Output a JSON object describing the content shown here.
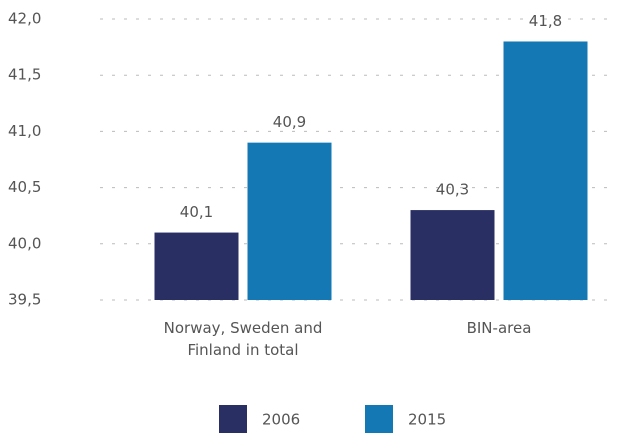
{
  "chart_data": {
    "type": "bar",
    "categories": [
      "Norway, Sweden and Finland in total",
      "BIN-area"
    ],
    "series": [
      {
        "name": "2006",
        "color": "#2a2f63",
        "values": [
          40.1,
          40.3
        ],
        "value_labels": [
          "40,1",
          "40,3"
        ]
      },
      {
        "name": "2015",
        "color": "#1478b4",
        "values": [
          40.9,
          41.8
        ],
        "value_labels": [
          "40,9",
          "41,8"
        ]
      }
    ],
    "ylim": [
      39.5,
      42.0
    ],
    "yticks": [
      {
        "value": 39.5,
        "label": "39,5"
      },
      {
        "value": 40.0,
        "label": "40,0"
      },
      {
        "value": 40.5,
        "label": "40,5"
      },
      {
        "value": 41.0,
        "label": "41,0"
      },
      {
        "value": 41.5,
        "label": "41,5"
      },
      {
        "value": 42.0,
        "label": "42,0"
      }
    ],
    "grid": true
  }
}
